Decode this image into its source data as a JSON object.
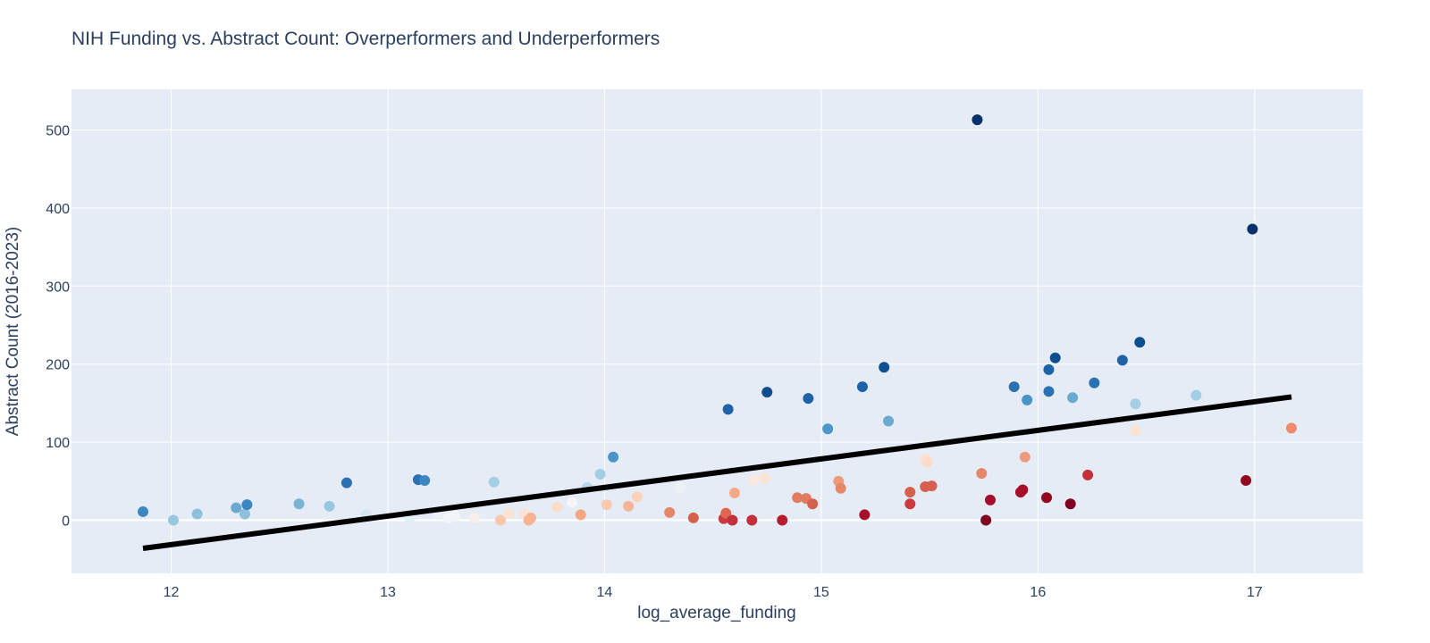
{
  "chart_data": {
    "type": "scatter",
    "title": "NIH Funding vs. Abstract Count: Overperformers and Underperformers",
    "xlabel": "log_average_funding",
    "ylabel": "Abstract Count (2016-2023)",
    "xlim": [
      11.54,
      17.5
    ],
    "ylim": [
      -68,
      552
    ],
    "xticks": [
      12,
      13,
      14,
      15,
      16,
      17
    ],
    "yticks": [
      0,
      100,
      200,
      300,
      400,
      500
    ],
    "grid": true,
    "legend": "none",
    "trendline": {
      "x": [
        11.87,
        17.17
      ],
      "y": [
        -36,
        158
      ]
    },
    "points": [
      {
        "x": 11.87,
        "y": 11,
        "color": "#3d87c0"
      },
      {
        "x": 12.01,
        "y": 0,
        "color": "#97c8e1"
      },
      {
        "x": 12.12,
        "y": 8,
        "color": "#8cc0dd"
      },
      {
        "x": 12.3,
        "y": 16,
        "color": "#6aaad1"
      },
      {
        "x": 12.34,
        "y": 8,
        "color": "#8cc0dd"
      },
      {
        "x": 12.35,
        "y": 20,
        "color": "#3d87c0"
      },
      {
        "x": 12.59,
        "y": 21,
        "color": "#79b4d6"
      },
      {
        "x": 12.73,
        "y": 18,
        "color": "#97c8e1"
      },
      {
        "x": 12.81,
        "y": 48,
        "color": "#2a71b2"
      },
      {
        "x": 12.9,
        "y": 7,
        "color": "#d4e6f1"
      },
      {
        "x": 13.14,
        "y": 52,
        "color": "#2a71b2"
      },
      {
        "x": 13.17,
        "y": 51,
        "color": "#3d87c0"
      },
      {
        "x": 13.1,
        "y": 3,
        "color": "#e6eef5"
      },
      {
        "x": 13.23,
        "y": 7,
        "color": "#eaf0f5"
      },
      {
        "x": 13.28,
        "y": 3,
        "color": "#f3f5f7"
      },
      {
        "x": 13.31,
        "y": 5,
        "color": "#f2f4f7"
      },
      {
        "x": 13.37,
        "y": 12,
        "color": "#e4edf5"
      },
      {
        "x": 13.4,
        "y": 3,
        "color": "#f9efe8"
      },
      {
        "x": 13.49,
        "y": 49,
        "color": "#a4cee4"
      },
      {
        "x": 13.52,
        "y": 0,
        "color": "#f9c5ab"
      },
      {
        "x": 13.56,
        "y": 8,
        "color": "#fbe3d4"
      },
      {
        "x": 13.63,
        "y": 8,
        "color": "#fbe3d4"
      },
      {
        "x": 13.65,
        "y": 0,
        "color": "#f7b294"
      },
      {
        "x": 13.66,
        "y": 3,
        "color": "#f7b294"
      },
      {
        "x": 13.78,
        "y": 17,
        "color": "#fbdccb"
      },
      {
        "x": 13.85,
        "y": 23,
        "color": "#f4f6f8"
      },
      {
        "x": 13.89,
        "y": 7,
        "color": "#f4a582"
      },
      {
        "x": 13.92,
        "y": 42,
        "color": "#b5d7e8"
      },
      {
        "x": 13.98,
        "y": 59,
        "color": "#a4cee4"
      },
      {
        "x": 14.01,
        "y": 20,
        "color": "#f9c8ad"
      },
      {
        "x": 14.04,
        "y": 81,
        "color": "#4993c7"
      },
      {
        "x": 14.11,
        "y": 18,
        "color": "#f6b396"
      },
      {
        "x": 14.15,
        "y": 30,
        "color": "#fbd2bc"
      },
      {
        "x": 14.3,
        "y": 10,
        "color": "#e68769"
      },
      {
        "x": 14.35,
        "y": 42,
        "color": "#eef2f6"
      },
      {
        "x": 14.41,
        "y": 3,
        "color": "#d6604d"
      },
      {
        "x": 14.55,
        "y": 2,
        "color": "#c93b3e"
      },
      {
        "x": 14.56,
        "y": 9,
        "color": "#e06552"
      },
      {
        "x": 14.57,
        "y": 142,
        "color": "#1e62a8"
      },
      {
        "x": 14.59,
        "y": 0,
        "color": "#c42f3c"
      },
      {
        "x": 14.6,
        "y": 35,
        "color": "#f4aa88"
      },
      {
        "x": 14.68,
        "y": 0,
        "color": "#c42f3c"
      },
      {
        "x": 14.69,
        "y": 52,
        "color": "#fbe8df"
      },
      {
        "x": 14.74,
        "y": 54,
        "color": "#fbe3d4"
      },
      {
        "x": 14.75,
        "y": 164,
        "color": "#0f4f8f"
      },
      {
        "x": 14.82,
        "y": 0,
        "color": "#b81b2f"
      },
      {
        "x": 14.89,
        "y": 29,
        "color": "#e07b62"
      },
      {
        "x": 14.93,
        "y": 28,
        "color": "#e07b62"
      },
      {
        "x": 14.94,
        "y": 156,
        "color": "#1e62a8"
      },
      {
        "x": 14.96,
        "y": 21,
        "color": "#d6604d"
      },
      {
        "x": 15.03,
        "y": 117,
        "color": "#4e96c9"
      },
      {
        "x": 15.08,
        "y": 50,
        "color": "#ee9a7c"
      },
      {
        "x": 15.09,
        "y": 41,
        "color": "#e68769"
      },
      {
        "x": 15.19,
        "y": 171,
        "color": "#1e62a8"
      },
      {
        "x": 15.2,
        "y": 7,
        "color": "#a50f2a"
      },
      {
        "x": 15.29,
        "y": 196,
        "color": "#0f4f8f"
      },
      {
        "x": 15.31,
        "y": 127,
        "color": "#6aaad1"
      },
      {
        "x": 15.41,
        "y": 36,
        "color": "#d6604d"
      },
      {
        "x": 15.41,
        "y": 21,
        "color": "#c93b3e"
      },
      {
        "x": 15.46,
        "y": 95,
        "color": "#eef2f6"
      },
      {
        "x": 15.48,
        "y": 79,
        "color": "#fbe3d4"
      },
      {
        "x": 15.49,
        "y": 74,
        "color": "#fbdccb"
      },
      {
        "x": 15.48,
        "y": 43,
        "color": "#d6604d"
      },
      {
        "x": 15.51,
        "y": 44,
        "color": "#d6604d"
      },
      {
        "x": 15.72,
        "y": 513,
        "color": "#08306b"
      },
      {
        "x": 15.74,
        "y": 60,
        "color": "#e68769"
      },
      {
        "x": 15.76,
        "y": 0,
        "color": "#7f0020"
      },
      {
        "x": 15.78,
        "y": 26,
        "color": "#a50f2a"
      },
      {
        "x": 15.89,
        "y": 171,
        "color": "#2a71b2"
      },
      {
        "x": 15.92,
        "y": 36,
        "color": "#a50f2a"
      },
      {
        "x": 15.93,
        "y": 39,
        "color": "#a50f2a"
      },
      {
        "x": 15.94,
        "y": 81,
        "color": "#ee9a7c"
      },
      {
        "x": 15.95,
        "y": 154,
        "color": "#4993c7"
      },
      {
        "x": 16.04,
        "y": 29,
        "color": "#94081f"
      },
      {
        "x": 16.05,
        "y": 165,
        "color": "#2a71b2"
      },
      {
        "x": 16.05,
        "y": 193,
        "color": "#1e62a8"
      },
      {
        "x": 16.08,
        "y": 208,
        "color": "#0f4f8f"
      },
      {
        "x": 16.15,
        "y": 21,
        "color": "#7f0020"
      },
      {
        "x": 16.16,
        "y": 157,
        "color": "#6aaad1"
      },
      {
        "x": 16.23,
        "y": 58,
        "color": "#c42f3c"
      },
      {
        "x": 16.26,
        "y": 176,
        "color": "#2a71b2"
      },
      {
        "x": 16.39,
        "y": 205,
        "color": "#1e62a8"
      },
      {
        "x": 16.45,
        "y": 149,
        "color": "#a4cee4"
      },
      {
        "x": 16.45,
        "y": 115,
        "color": "#fbe3d4"
      },
      {
        "x": 16.47,
        "y": 228,
        "color": "#0f4f8f"
      },
      {
        "x": 16.73,
        "y": 160,
        "color": "#a4cee4"
      },
      {
        "x": 16.96,
        "y": 51,
        "color": "#94081f"
      },
      {
        "x": 16.99,
        "y": 373,
        "color": "#08306b"
      },
      {
        "x": 17.17,
        "y": 118,
        "color": "#ee8a6e"
      }
    ]
  }
}
